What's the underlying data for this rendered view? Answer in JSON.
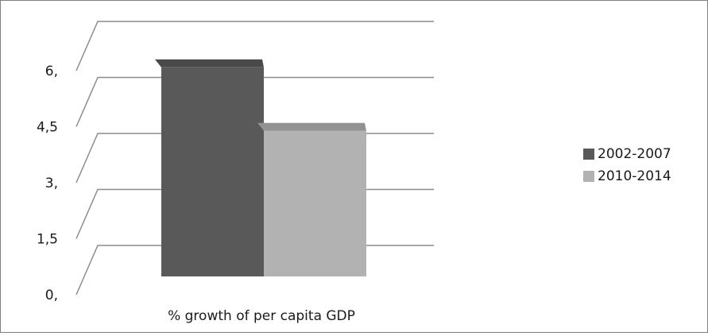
{
  "chart_data": {
    "type": "bar",
    "categories": [
      "% growth of per capita GDP"
    ],
    "series": [
      {
        "name": "2002-2007",
        "values": [
          5.6
        ],
        "color": "#595959"
      },
      {
        "name": "2010-2014",
        "values": [
          3.9
        ],
        "color": "#b2b2b2"
      }
    ],
    "ylim": [
      0,
      6
    ],
    "yticks": [
      0,
      1.5,
      3,
      4.5,
      6
    ],
    "ytick_labels": [
      "0,",
      "1,5",
      "3,",
      "4,5",
      "6,"
    ],
    "grid": true,
    "legend_position": "right",
    "style": "3d-column",
    "title": "",
    "xlabel": "",
    "ylabel": ""
  }
}
